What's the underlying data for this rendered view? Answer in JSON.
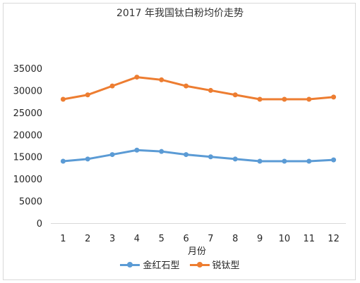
{
  "chart_data": {
    "type": "line",
    "title": "2017 年我国钛白粉均价走势",
    "xlabel": "月份",
    "ylabel": "",
    "categories": [
      "1",
      "2",
      "3",
      "4",
      "5",
      "6",
      "7",
      "8",
      "9",
      "10",
      "11",
      "12"
    ],
    "y_ticks": [
      "0",
      "5000",
      "10000",
      "15000",
      "20000",
      "25000",
      "30000",
      "35000"
    ],
    "ylim": [
      0,
      35000
    ],
    "grid": false,
    "legend_position": "bottom",
    "series": [
      {
        "name": "金红石型",
        "color": "#5b9bd5",
        "values": [
          14000,
          14500,
          15500,
          16500,
          16200,
          15500,
          15000,
          14500,
          14000,
          14000,
          14000,
          14300
        ]
      },
      {
        "name": "锐钛型",
        "color": "#ed7d31",
        "values": [
          28000,
          29000,
          31000,
          33000,
          32400,
          31000,
          30000,
          29000,
          28000,
          28000,
          28000,
          28500
        ]
      }
    ]
  }
}
